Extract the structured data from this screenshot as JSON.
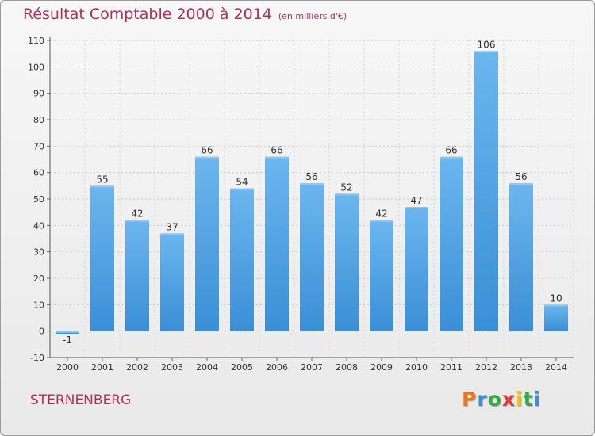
{
  "header": {
    "title": "Résultat Comptable 2000 à 2014",
    "unit": "(en milliers d'€)"
  },
  "footer": {
    "place": "STERNENBERG",
    "logo_text": "Proxiti",
    "logo_colors": [
      "#e87722",
      "#3a8dd8",
      "#3aa845",
      "#e03a3a",
      "#f2c200",
      "#3aa845",
      "#3a8dd8"
    ]
  },
  "chart_data": {
    "type": "bar",
    "title": "Résultat Comptable 2000 à 2014",
    "categories": [
      "2000",
      "2001",
      "2002",
      "2003",
      "2004",
      "2005",
      "2006",
      "2007",
      "2008",
      "2009",
      "2010",
      "2011",
      "2012",
      "2013",
      "2014"
    ],
    "values": [
      -1,
      55,
      42,
      37,
      66,
      54,
      66,
      56,
      52,
      42,
      47,
      66,
      106,
      56,
      10
    ],
    "data_labels": [
      "-1",
      "55",
      "42",
      "37",
      "66",
      "54",
      "66",
      "56",
      "52",
      "42",
      "47",
      "66",
      "106",
      "56",
      "10"
    ],
    "ylim": [
      -10,
      110
    ],
    "yticks": [
      -10,
      0,
      10,
      20,
      30,
      40,
      50,
      60,
      70,
      80,
      90,
      100,
      110
    ],
    "ytick_labels": [
      "-10",
      "0",
      "10",
      "20",
      "30",
      "40",
      "50",
      "60",
      "70",
      "80",
      "90",
      "100",
      "110"
    ],
    "grid": "horizontal-dashed",
    "bar_color": "#3a8fd6",
    "bar_color_light": "#6cb6ee"
  }
}
